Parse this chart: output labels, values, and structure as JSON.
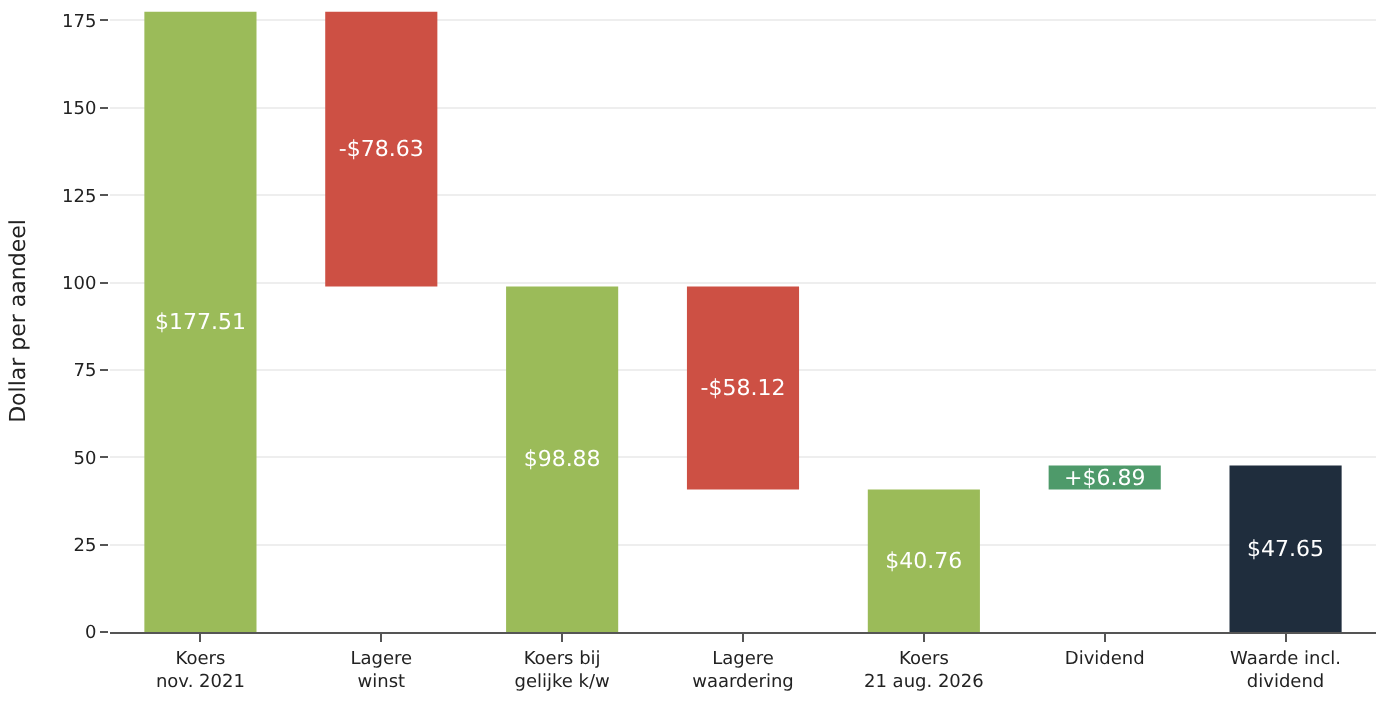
{
  "chart_data": {
    "type": "bar",
    "ylabel": "Dollar per aandeel",
    "categories": [
      "Koers\nnov. 2021",
      "Lagere\nwinst",
      "Koers bij\ngelijke k/w",
      "Lagere\nwaardering",
      "Koers\n21 aug. 2026",
      "Dividend",
      "Waarde incl.\ndividend"
    ],
    "values": [
      177.51,
      -78.63,
      98.88,
      -58.12,
      40.76,
      6.89,
      47.65
    ],
    "base": [
      0,
      177.51,
      0,
      98.88,
      0,
      40.76,
      0
    ],
    "colors": [
      "#9bbb59",
      "#cd5044",
      "#9bbb59",
      "#cd5044",
      "#9bbb59",
      "#4e9a6a",
      "#1f2d3d"
    ],
    "value_labels": [
      "$177.51",
      "-$78.63",
      "$98.88",
      "-$58.12",
      "$40.76",
      "+$6.89",
      "$47.65"
    ],
    "ylim": [
      0,
      178
    ],
    "yticks": [
      0,
      25,
      50,
      75,
      100,
      125,
      150,
      175
    ],
    "grid": "y",
    "legend": false
  }
}
